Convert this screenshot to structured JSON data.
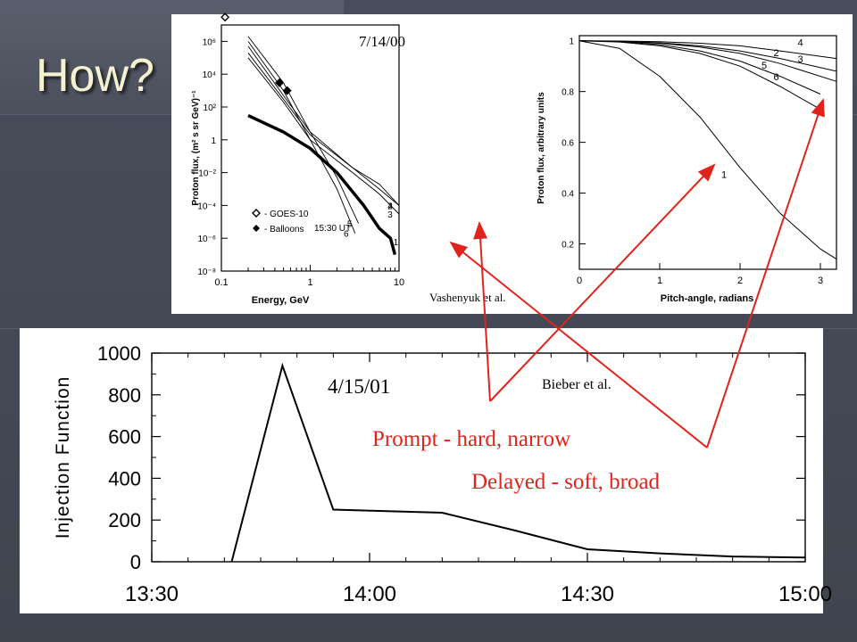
{
  "slide": {
    "title": "How?",
    "colors": {
      "background": "#454956",
      "title": "#f4f2d0",
      "annotation": "#e0241b"
    }
  },
  "annotations": {
    "top_date": "7/14/00",
    "top_credit": "Vashenyuk et al.",
    "bottom_date": "4/15/01",
    "bottom_credit": "Bieber et al.",
    "prompt_label": "Prompt - hard, narrow",
    "delayed_label": "Delayed - soft, broad"
  },
  "chart_data": [
    {
      "type": "line",
      "id": "spectrum",
      "xlabel": "Energy, GeV",
      "ylabel": "Proton flux, (m² s sr GeV)⁻¹",
      "x_scale": "log",
      "y_scale": "log",
      "xlim": [
        0.1,
        10
      ],
      "ylim": [
        1e-08,
        10000000.0
      ],
      "x_ticks": [
        "0.1",
        "1",
        "10"
      ],
      "y_ticks": [
        "10⁻⁸",
        "10⁻⁶",
        "10⁻⁴",
        "10⁻²",
        "1",
        "10²",
        "10⁴",
        "10⁶"
      ],
      "time_label": "15:30 UT",
      "legend": [
        {
          "symbol": "open-diamond",
          "label": "- GOES-10"
        },
        {
          "symbol": "filled-diamond",
          "label": "- Balloons"
        }
      ],
      "legend_position": "bottom-left",
      "series": [
        {
          "name": "1",
          "x": [
            0.2,
            0.5,
            1,
            2,
            4,
            6,
            8,
            9
          ],
          "y": [
            30.0,
            3.0,
            0.3,
            0.01,
            0.0001,
            4e-06,
            1e-06,
            1e-07
          ],
          "bold": true
        },
        {
          "name": "2",
          "x": [
            0.2,
            0.5,
            1,
            3,
            6,
            10
          ],
          "y": [
            200000.0,
            300.0,
            2.0,
            0.02,
            0.001,
            0.0001
          ]
        },
        {
          "name": "3",
          "x": [
            0.2,
            0.5,
            1,
            3,
            6,
            10
          ],
          "y": [
            100000.0,
            200.0,
            1.0,
            0.01,
            0.0005,
            3e-05
          ]
        },
        {
          "name": "4",
          "x": [
            0.2,
            0.5,
            1,
            3,
            6,
            10
          ],
          "y": [
            500000.0,
            500.0,
            3.0,
            0.02,
            0.002,
            0.0001
          ]
        },
        {
          "name": "5",
          "x": [
            0.2,
            0.5,
            1,
            2,
            3.5
          ],
          "y": [
            2000000.0,
            3000.0,
            3.0,
            0.005,
            8e-06
          ]
        },
        {
          "name": "6",
          "x": [
            0.2,
            0.5,
            1,
            2,
            3.2
          ],
          "y": [
            1000000.0,
            1000.0,
            1.0,
            0.001,
            2e-06
          ]
        }
      ],
      "points": [
        {
          "series": "GOES-10",
          "x": [
            0.11
          ],
          "y": [
            30000000.0
          ]
        },
        {
          "series": "Balloons",
          "x": [
            0.45,
            0.55
          ],
          "y": [
            3000.0,
            1000.0
          ]
        }
      ]
    },
    {
      "type": "line",
      "id": "pitch-angle",
      "xlabel": "Pitch-angle, radians",
      "ylabel": "Proton flux, arbitrary units",
      "xlim": [
        0,
        3.2
      ],
      "ylim": [
        0.1,
        1.02
      ],
      "x_ticks": [
        "0",
        "1",
        "2",
        "3"
      ],
      "y_ticks": [
        "0.2",
        "0.4",
        "0.6",
        "0.8",
        "1"
      ],
      "series": [
        {
          "name": "1",
          "x": [
            0,
            0.5,
            1,
            1.5,
            2,
            2.5,
            3,
            3.2
          ],
          "y": [
            1,
            0.97,
            0.86,
            0.7,
            0.5,
            0.32,
            0.18,
            0.14
          ]
        },
        {
          "name": "6",
          "x": [
            0,
            0.5,
            1,
            1.5,
            2,
            2.5,
            3
          ],
          "y": [
            1,
            0.995,
            0.98,
            0.95,
            0.9,
            0.82,
            0.73
          ]
        },
        {
          "name": "5",
          "x": [
            0,
            0.5,
            1,
            1.5,
            2,
            2.5,
            3
          ],
          "y": [
            1,
            0.997,
            0.985,
            0.96,
            0.92,
            0.86,
            0.79
          ]
        },
        {
          "name": "3",
          "x": [
            0,
            0.5,
            1,
            1.5,
            2,
            2.5,
            3.2
          ],
          "y": [
            1,
            0.998,
            0.99,
            0.975,
            0.95,
            0.91,
            0.84
          ]
        },
        {
          "name": "2",
          "x": [
            0,
            0.5,
            1,
            1.5,
            2,
            2.5,
            3.2
          ],
          "y": [
            1,
            0.998,
            0.992,
            0.98,
            0.96,
            0.93,
            0.88
          ]
        },
        {
          "name": "4",
          "x": [
            0,
            0.5,
            1,
            1.5,
            2,
            2.5,
            3.2
          ],
          "y": [
            1,
            0.999,
            0.996,
            0.99,
            0.98,
            0.96,
            0.93
          ]
        }
      ]
    },
    {
      "type": "line",
      "id": "injection",
      "ylabel": "Injection Function",
      "xlim": [
        "13:30",
        "15:00"
      ],
      "ylim": [
        0,
        1000
      ],
      "x_ticks": [
        "13:30",
        "14:00",
        "14:30",
        "15:00"
      ],
      "y_ticks": [
        "0",
        "200",
        "400",
        "600",
        "800",
        "1000"
      ],
      "series": [
        {
          "name": "Injection Function",
          "x": [
            "13:41",
            "13:48",
            "13:55",
            "14:10",
            "14:20",
            "14:30",
            "14:40",
            "14:50",
            "15:00"
          ],
          "y": [
            0,
            940,
            250,
            235,
            150,
            60,
            40,
            25,
            20
          ]
        }
      ]
    }
  ]
}
